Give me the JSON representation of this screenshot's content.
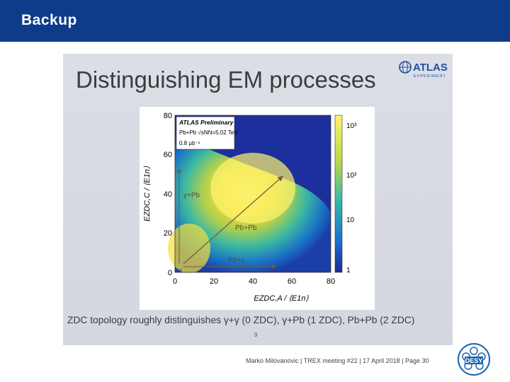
{
  "header": {
    "title": "Backup"
  },
  "slide": {
    "title": "Distinguishing EM processes",
    "logo": {
      "text": "ATLAS",
      "subtext": "EXPERIMENT"
    },
    "plot": {
      "legend_line1": "ATLAS Preliminary",
      "legend_line2": "Pb+Pb  √sNN=5.02 TeV",
      "legend_line3": "0.8 μb⁻¹",
      "ylabel": "EZDC,C / ⟨E1n⟩",
      "xlabel": "EZDC,A / ⟨E1n⟩",
      "x_ticks": [
        "0",
        "20",
        "40",
        "60",
        "80"
      ],
      "y_ticks": [
        "0",
        "20",
        "40",
        "60",
        "80"
      ],
      "z_ticks": [
        "1",
        "10",
        "10²",
        "10³"
      ],
      "region_gamma_pb_left": "γ+Pb",
      "region_pb_pb": "Pb+Pb",
      "region_pb_gamma": "Pb+γ",
      "region_gamma_gamma": "γ+γ"
    },
    "caption": "ZDC topology roughly distinguishes γ+γ (0 ZDC), γ+Pb (1 ZDC), Pb+Pb (2 ZDC)",
    "page_number": "9"
  },
  "footer": {
    "text": "Marko Milovanovic  |  TREX meeting #22  |  17 April 2018  |  Page 30"
  },
  "desy_logo": {
    "text": "DESY"
  },
  "colors": {
    "header": "#0e3c8a",
    "atlas_blue": "#1d4f9c",
    "desy_blue": "#1a64b4"
  }
}
